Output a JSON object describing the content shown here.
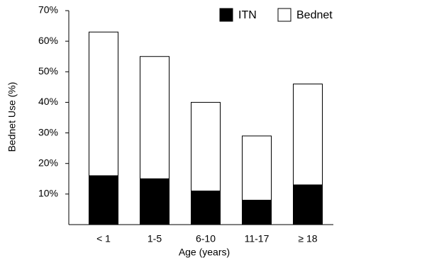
{
  "chart_data": {
    "type": "bar",
    "categories": [
      "< 1",
      "1-5",
      "6-10",
      "11-17",
      "≥ 18"
    ],
    "series": [
      {
        "name": "Bednet",
        "color": "#ffffff",
        "values": [
          63,
          55,
          40,
          29,
          46
        ]
      },
      {
        "name": "ITN",
        "color": "#000000",
        "values": [
          16,
          15,
          11,
          8,
          13
        ]
      }
    ],
    "ylim": [
      0,
      70
    ],
    "yticks": [
      {
        "value": 10,
        "label": "10%"
      },
      {
        "value": 20,
        "label": "20%"
      },
      {
        "value": 30,
        "label": "30%"
      },
      {
        "value": 40,
        "label": "40%"
      },
      {
        "value": 50,
        "label": "50%"
      },
      {
        "value": 60,
        "label": "60%"
      },
      {
        "value": 70,
        "label": "70%"
      }
    ],
    "ylabel": "Bednet Use (%)",
    "xlabel": "Age (years)",
    "legend": "top"
  }
}
